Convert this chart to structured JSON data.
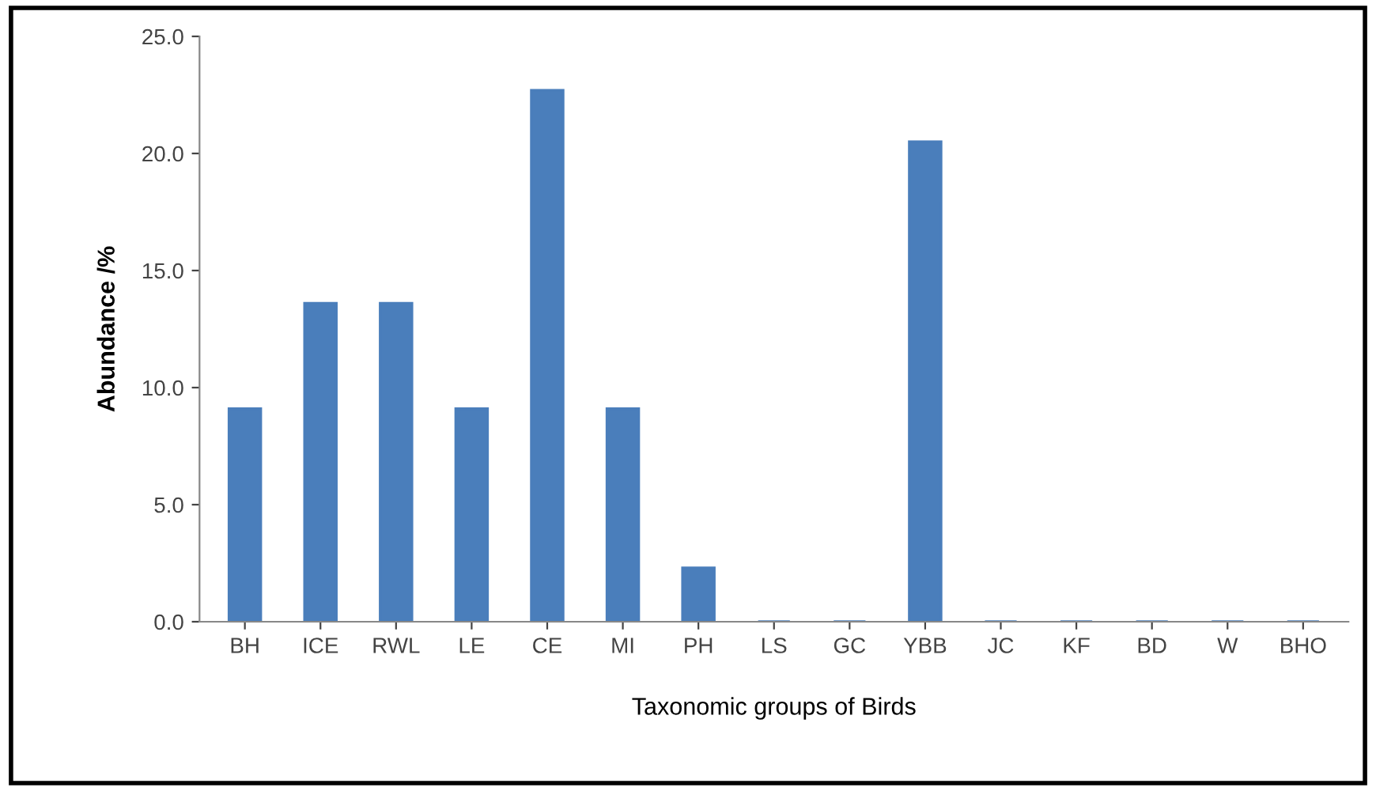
{
  "chart_data": {
    "type": "bar",
    "xlabel": "Taxonomic groups of Birds",
    "ylabel": "Abundance /%",
    "categories": [
      "BH",
      "ICE",
      "RWL",
      "LE",
      "CE",
      "MI",
      "PH",
      "LS",
      "GC",
      "YBB",
      "JC",
      "KF",
      "BD",
      "W",
      "BHO"
    ],
    "values": [
      9.1,
      13.6,
      13.6,
      9.1,
      22.7,
      9.1,
      2.3,
      0,
      0,
      20.5,
      0,
      0,
      0,
      0,
      0
    ],
    "color": "#4a7ebb",
    "ylim": [
      0,
      25
    ],
    "yticks": [
      {
        "value": 0,
        "label": "0.0"
      },
      {
        "value": 5,
        "label": "5.0"
      },
      {
        "value": 10,
        "label": "10.0"
      },
      {
        "value": 15,
        "label": "15.0"
      },
      {
        "value": 20,
        "label": "20.0"
      },
      {
        "value": 25,
        "label": "25.0"
      }
    ],
    "grid": false,
    "legend": false
  }
}
